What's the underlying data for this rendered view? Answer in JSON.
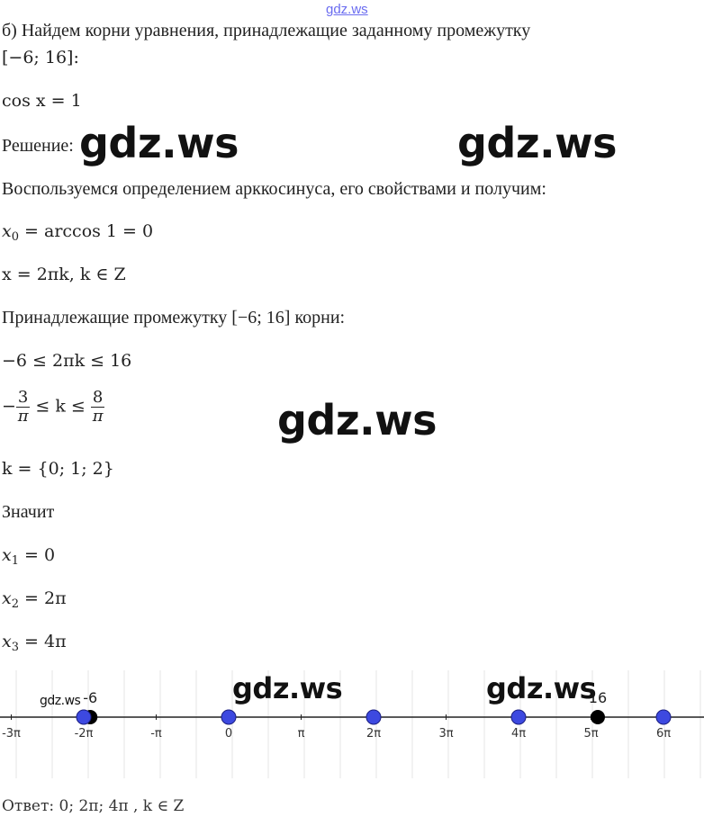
{
  "watermark_top": "gdz.ws",
  "watermarks": [
    "gdz.ws",
    "gdz.ws",
    "gdz.ws",
    "gdz.ws",
    "gdz.ws",
    "gdz.ws"
  ],
  "intro_1": "б) Найдем корни уравнения, принадлежащие заданному промежутку",
  "intro_2": "[−6; 16]:",
  "equation": "cos x = 1",
  "solution_label": "Решение:",
  "method": "Воспользуемся определением арккосинуса, его свойствами и получим:",
  "x0_line": "= arccos 1 = 0",
  "general_solution": "x = 2πk, k ∈ Z",
  "interval_text": "Принадлежащие промежутку [−6; 16] корни:",
  "inequality": "−6 ≤ 2πk ≤ 16",
  "frac_inequality": {
    "left_num": "3",
    "left_den": "π",
    "mid": "≤ k ≤",
    "right_num": "8",
    "right_den": "π"
  },
  "k_set": "k = {0; 1; 2}",
  "therefore": "Значит",
  "roots": [
    {
      "var": "x",
      "sub": "1",
      "value": "= 0"
    },
    {
      "var": "x",
      "sub": "2",
      "value": "= 2π"
    },
    {
      "var": "x",
      "sub": "3",
      "value": "= 4π"
    }
  ],
  "number_line": {
    "tick_labels": [
      "-3π",
      "-2π",
      "-π",
      "0",
      "π",
      "2π",
      "3π",
      "4π",
      "5π",
      "6π"
    ],
    "blue_points": [
      "-2π",
      "0",
      "2π",
      "4π",
      "6π"
    ],
    "endpoint_labels": [
      "-6",
      "16"
    ],
    "point_colors": {
      "blue": "#3d49e0",
      "black": "#000000"
    }
  },
  "answer": "Ответ: 0;  2π;  4π , k ∈ Z"
}
